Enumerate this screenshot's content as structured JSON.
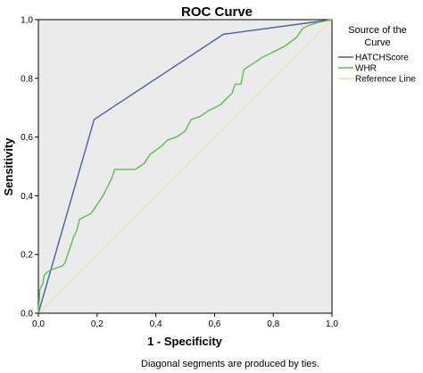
{
  "chart_data": {
    "type": "line",
    "title": "ROC Curve",
    "xlabel": "1 - Specificity",
    "ylabel": "Sensitivity",
    "xlim": [
      0,
      1
    ],
    "ylim": [
      0,
      1
    ],
    "x_ticks": [
      "0,0",
      "0,2",
      "0,4",
      "0,6",
      "0,8",
      "1,0"
    ],
    "y_ticks": [
      "0,0",
      "0,2",
      "0,4",
      "0,6",
      "0,8",
      "1,0"
    ],
    "grid": false,
    "plot_background": "#ebebeb",
    "legend": {
      "title_lines": [
        "Source of the",
        "Curve"
      ],
      "placement": "right"
    },
    "series": [
      {
        "name": "HATCHScore",
        "color": "#4a5fa8",
        "points": [
          [
            0,
            0
          ],
          [
            0.19,
            0.66
          ],
          [
            0.63,
            0.95
          ],
          [
            1.0,
            1.0
          ]
        ]
      },
      {
        "name": "WHR",
        "color": "#5bbf4a",
        "points": [
          [
            0,
            0
          ],
          [
            0.005,
            0.08
          ],
          [
            0.015,
            0.1
          ],
          [
            0.02,
            0.13
          ],
          [
            0.03,
            0.14
          ],
          [
            0.05,
            0.15
          ],
          [
            0.08,
            0.16
          ],
          [
            0.09,
            0.17
          ],
          [
            0.11,
            0.23
          ],
          [
            0.12,
            0.26
          ],
          [
            0.13,
            0.28
          ],
          [
            0.14,
            0.32
          ],
          [
            0.16,
            0.33
          ],
          [
            0.18,
            0.34
          ],
          [
            0.2,
            0.37
          ],
          [
            0.22,
            0.4
          ],
          [
            0.24,
            0.44
          ],
          [
            0.25,
            0.46
          ],
          [
            0.26,
            0.49
          ],
          [
            0.28,
            0.49
          ],
          [
            0.33,
            0.49
          ],
          [
            0.36,
            0.51
          ],
          [
            0.38,
            0.54
          ],
          [
            0.42,
            0.57
          ],
          [
            0.44,
            0.59
          ],
          [
            0.47,
            0.6
          ],
          [
            0.5,
            0.62
          ],
          [
            0.52,
            0.66
          ],
          [
            0.55,
            0.67
          ],
          [
            0.58,
            0.69
          ],
          [
            0.62,
            0.71
          ],
          [
            0.64,
            0.73
          ],
          [
            0.66,
            0.75
          ],
          [
            0.67,
            0.78
          ],
          [
            0.69,
            0.78
          ],
          [
            0.7,
            0.83
          ],
          [
            0.73,
            0.85
          ],
          [
            0.76,
            0.87
          ],
          [
            0.8,
            0.89
          ],
          [
            0.84,
            0.91
          ],
          [
            0.88,
            0.94
          ],
          [
            0.9,
            0.97
          ],
          [
            0.92,
            0.98
          ],
          [
            0.95,
            0.99
          ],
          [
            1.0,
            1.0
          ]
        ]
      },
      {
        "name": "Reference Line",
        "color": "#e8e0a8",
        "points": [
          [
            0,
            0
          ],
          [
            1,
            1
          ]
        ]
      }
    ],
    "footnote": "Diagonal segments are produced by ties."
  }
}
